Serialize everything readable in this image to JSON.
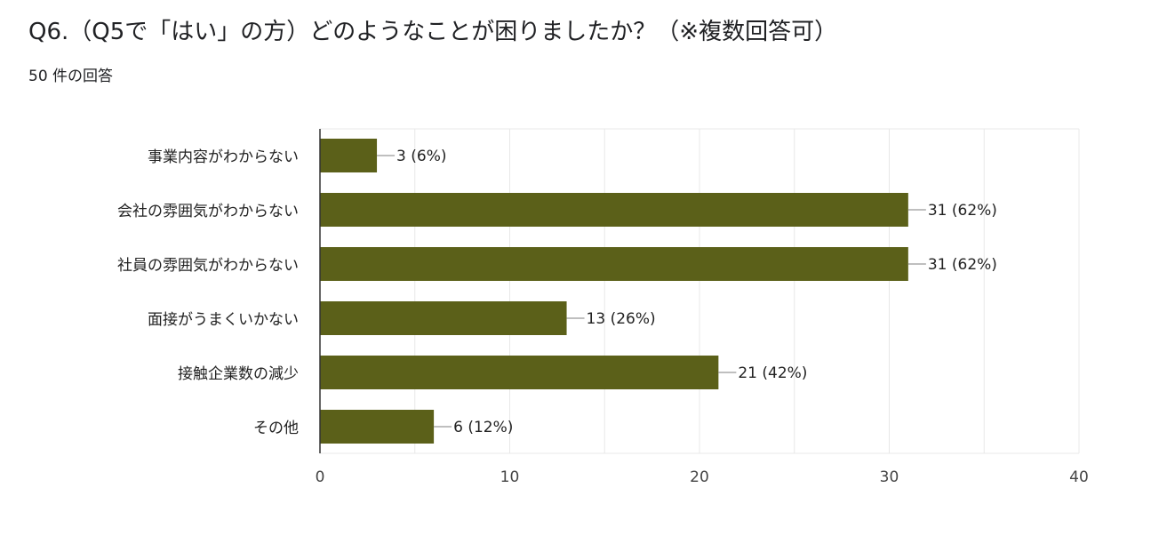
{
  "question": {
    "title": "Q6.（Q5で「はい」の方）どのようなことが困りましたか？（※複数回答可）",
    "response_count": "50 件の回答"
  },
  "colors": {
    "bar": "#5b6019",
    "grid": "#e8e8e8",
    "axis": "#333333",
    "text": "#222222",
    "leader": "#999999"
  },
  "chart_data": {
    "type": "bar",
    "orientation": "horizontal",
    "categories": [
      "事業内容がわからない",
      "会社の雰囲気がわからない",
      "社員の雰囲気がわからない",
      "面接がうまくいかない",
      "接触企業数の減少",
      "その他"
    ],
    "values": [
      3,
      31,
      31,
      13,
      21,
      6
    ],
    "data_labels": [
      "3 (6%)",
      "31 (62%)",
      "31 (62%)",
      "13 (26%)",
      "21 (42%)",
      "6 (12%)"
    ],
    "xlim": [
      0,
      40
    ],
    "x_ticks": [
      0,
      10,
      20,
      30,
      40
    ],
    "grid": true
  }
}
